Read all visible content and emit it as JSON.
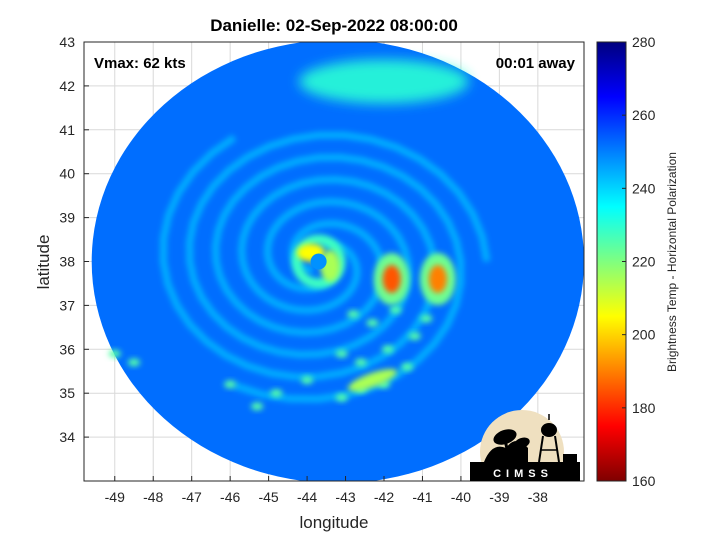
{
  "chart_data": {
    "type": "heatmap",
    "title": "Danielle: 02-Sep-2022 08:00:00",
    "xlabel": "longitude",
    "ylabel": "latitude",
    "xlim": [
      -49.8,
      -36.8
    ],
    "ylim": [
      33.0,
      43.0
    ],
    "x_ticks": [
      -49,
      -48,
      -47,
      -46,
      -45,
      -44,
      -43,
      -42,
      -41,
      -40,
      -39,
      -38
    ],
    "y_ticks": [
      34,
      35,
      36,
      37,
      38,
      39,
      40,
      41,
      42,
      43
    ],
    "grid": true,
    "annotations": {
      "vmax": "Vmax: 62 kts",
      "time_offset": "00:01 away"
    },
    "storm_center": {
      "lon": -43.7,
      "lat": 38.0
    },
    "swath": {
      "center_lon": -43.2,
      "center_lat": 38.0,
      "radius_lon": 6.4,
      "radius_lat": 5.05
    },
    "colorbar": {
      "label": "Brightness Temp - Horizontal Polarization",
      "min": 160,
      "max": 280,
      "ticks": [
        160,
        180,
        200,
        220,
        240,
        260,
        280
      ],
      "colormap": "jet"
    },
    "features": [
      {
        "name": "background",
        "value": 252
      },
      {
        "name": "eyewall-west",
        "lon": -43.9,
        "lat": 38.2,
        "value": 205
      },
      {
        "name": "eyewall-east",
        "lon": -43.4,
        "lat": 37.9,
        "value": 215
      },
      {
        "name": "rainband-core-1",
        "lon": -41.8,
        "lat": 37.6,
        "value": 185
      },
      {
        "name": "rainband-core-2",
        "lon": -40.6,
        "lat": 37.6,
        "value": 190
      },
      {
        "name": "rainband-south",
        "lon": -42.3,
        "lat": 35.3,
        "value": 215
      },
      {
        "name": "warm-region-north",
        "lon": -42.0,
        "lat": 42.1,
        "value": 230
      }
    ]
  },
  "logo": {
    "text": "CIMSS",
    "name": "cimss-logo"
  }
}
